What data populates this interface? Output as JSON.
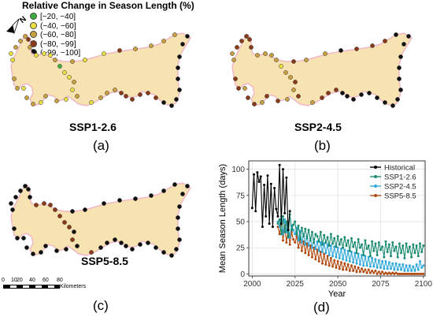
{
  "legend": {
    "title": "Relative Change in Season Length (%)",
    "items": [
      {
        "label": "[−20, −40]",
        "color": "#3fae3f"
      },
      {
        "label": "(−40, −60]",
        "color": "#e8e040"
      },
      {
        "label": "(−60, −80]",
        "color": "#c8a040"
      },
      {
        "label": "(−80, −99]",
        "color": "#8a3a18"
      },
      {
        "label": "(−99, −100]",
        "color": "#101010"
      }
    ]
  },
  "north_arrow_label": "N",
  "maps": [
    {
      "label": "SSP1-2.6",
      "panel": "(a)"
    },
    {
      "label": "SSP2-4.5",
      "panel": "(b)"
    },
    {
      "label": "SSP5-8.5",
      "panel": "(c)"
    }
  ],
  "scale_bar": {
    "ticks": [
      "0",
      "10",
      "20",
      "40",
      "60",
      "80"
    ],
    "unit": "Kilometers"
  },
  "chart_panel": "(d)",
  "colors": {
    "land": "#f7e2b2",
    "coast": "#f0b8c8",
    "historical": "#000000",
    "ssp126": "#1a8a70",
    "ssp245": "#30a8d8",
    "ssp585": "#b04a10"
  },
  "chart_data": {
    "type": "line",
    "title": "",
    "xlabel": "Year",
    "ylabel": "Mean Season Length (days)",
    "xlim": [
      1998,
      2101
    ],
    "ylim": [
      -2,
      108
    ],
    "xticks": [
      2000,
      2025,
      2050,
      2075,
      2100
    ],
    "yticks": [
      0,
      25,
      50,
      75,
      100
    ],
    "grid": true,
    "legend_position": "top-right",
    "series": [
      {
        "name": "Historical",
        "x": [
          2000,
          2001,
          2002,
          2003,
          2004,
          2005,
          2006,
          2007,
          2008,
          2009,
          2010,
          2011,
          2012,
          2013,
          2014,
          2015,
          2016,
          2017,
          2018,
          2019,
          2020,
          2021,
          2022
        ],
        "values": [
          63,
          95,
          60,
          97,
          88,
          93,
          45,
          85,
          55,
          94,
          48,
          86,
          45,
          82,
          62,
          55,
          104,
          48,
          100,
          58,
          92,
          42,
          60
        ]
      },
      {
        "name": "SSP1-2.6",
        "x": [
          2015,
          2016,
          2017,
          2018,
          2019,
          2020,
          2021,
          2022,
          2023,
          2024,
          2025,
          2026,
          2027,
          2028,
          2029,
          2030,
          2031,
          2032,
          2033,
          2034,
          2035,
          2036,
          2037,
          2038,
          2039,
          2040,
          2041,
          2042,
          2043,
          2044,
          2045,
          2046,
          2047,
          2048,
          2049,
          2050,
          2051,
          2052,
          2053,
          2054,
          2055,
          2056,
          2057,
          2058,
          2059,
          2060,
          2061,
          2062,
          2063,
          2064,
          2065,
          2066,
          2067,
          2068,
          2069,
          2070,
          2071,
          2072,
          2073,
          2074,
          2075,
          2076,
          2077,
          2078,
          2079,
          2080,
          2081,
          2082,
          2083,
          2084,
          2085,
          2086,
          2087,
          2088,
          2089,
          2090,
          2091,
          2092,
          2093,
          2094,
          2095,
          2096,
          2097,
          2098,
          2099,
          2100
        ],
        "values": [
          48,
          52,
          38,
          55,
          40,
          50,
          35,
          57,
          42,
          47,
          50,
          38,
          46,
          33,
          44,
          36,
          43,
          34,
          42,
          32,
          40,
          30,
          38,
          36,
          31,
          40,
          28,
          37,
          30,
          35,
          27,
          38,
          29,
          34,
          26,
          36,
          28,
          33,
          25,
          35,
          27,
          32,
          22,
          34,
          26,
          30,
          20,
          33,
          25,
          28,
          18,
          32,
          24,
          27,
          17,
          31,
          22,
          29,
          18,
          30,
          23,
          26,
          16,
          31,
          21,
          28,
          17,
          30,
          22,
          26,
          16,
          29,
          20,
          27,
          15,
          29,
          21,
          26,
          16,
          28,
          20,
          27,
          17,
          29,
          21,
          27
        ]
      },
      {
        "name": "SSP2-4.5",
        "x": [
          2015,
          2016,
          2017,
          2018,
          2019,
          2020,
          2021,
          2022,
          2023,
          2024,
          2025,
          2026,
          2027,
          2028,
          2029,
          2030,
          2031,
          2032,
          2033,
          2034,
          2035,
          2036,
          2037,
          2038,
          2039,
          2040,
          2041,
          2042,
          2043,
          2044,
          2045,
          2046,
          2047,
          2048,
          2049,
          2050,
          2051,
          2052,
          2053,
          2054,
          2055,
          2056,
          2057,
          2058,
          2059,
          2060,
          2061,
          2062,
          2063,
          2064,
          2065,
          2066,
          2067,
          2068,
          2069,
          2070,
          2071,
          2072,
          2073,
          2074,
          2075,
          2076,
          2077,
          2078,
          2079,
          2080,
          2081,
          2082,
          2083,
          2084,
          2085,
          2086,
          2087,
          2088,
          2089,
          2090,
          2091,
          2092,
          2093,
          2094,
          2095,
          2096,
          2097,
          2098,
          2099,
          2100
        ],
        "values": [
          50,
          45,
          55,
          38,
          52,
          40,
          48,
          35,
          46,
          42,
          38,
          44,
          32,
          41,
          30,
          38,
          28,
          36,
          27,
          34,
          25,
          33,
          24,
          31,
          22,
          30,
          21,
          29,
          20,
          28,
          18,
          27,
          17,
          26,
          16,
          25,
          15,
          24,
          14,
          23,
          13,
          22,
          12,
          21,
          11,
          20,
          10,
          19,
          9,
          18,
          8,
          17,
          8,
          16,
          7,
          15,
          7,
          14,
          6,
          13,
          6,
          12,
          5,
          12,
          5,
          11,
          5,
          10,
          4,
          10,
          4,
          9,
          4,
          9,
          3,
          8,
          3,
          8,
          3,
          7,
          3,
          9,
          4,
          12,
          6,
          8
        ]
      },
      {
        "name": "SSP5-8.5",
        "x": [
          2015,
          2016,
          2017,
          2018,
          2019,
          2020,
          2021,
          2022,
          2023,
          2024,
          2025,
          2026,
          2027,
          2028,
          2029,
          2030,
          2031,
          2032,
          2033,
          2034,
          2035,
          2036,
          2037,
          2038,
          2039,
          2040,
          2041,
          2042,
          2043,
          2044,
          2045,
          2046,
          2047,
          2048,
          2049,
          2050,
          2051,
          2052,
          2053,
          2054,
          2055,
          2056,
          2057,
          2058,
          2059,
          2060,
          2061,
          2062,
          2063,
          2064,
          2065,
          2066,
          2067,
          2068,
          2069,
          2070,
          2071,
          2072,
          2073,
          2074,
          2075,
          2076,
          2077,
          2078,
          2079,
          2080,
          2081,
          2082,
          2083,
          2084,
          2085,
          2086,
          2087,
          2088,
          2089,
          2090,
          2091,
          2092,
          2093,
          2094,
          2095,
          2096,
          2097,
          2098,
          2099,
          2100
        ],
        "values": [
          45,
          38,
          50,
          32,
          46,
          30,
          42,
          28,
          40,
          33,
          30,
          36,
          25,
          33,
          22,
          31,
          20,
          29,
          18,
          27,
          16,
          25,
          14,
          23,
          12,
          21,
          10,
          19,
          9,
          17,
          8,
          15,
          7,
          13,
          6,
          12,
          5,
          11,
          4,
          10,
          4,
          9,
          3,
          8,
          3,
          7,
          2,
          6,
          2,
          5,
          2,
          4,
          1,
          4,
          1,
          3,
          1,
          3,
          0,
          2,
          0,
          2,
          0,
          1,
          0,
          1,
          0,
          1,
          0,
          1,
          0,
          0,
          0,
          0,
          0,
          0,
          0,
          0,
          0,
          0,
          0,
          0,
          0,
          0,
          0,
          0
        ]
      }
    ]
  }
}
